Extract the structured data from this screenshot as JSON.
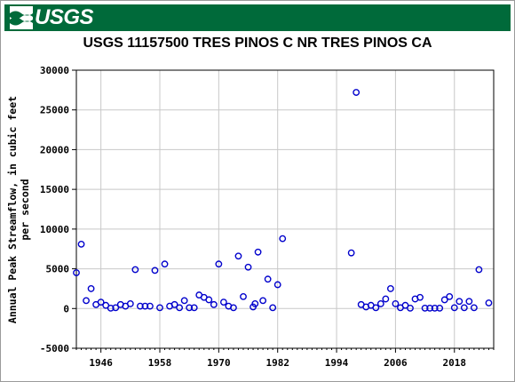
{
  "banner": {
    "logo_text": "USGS",
    "logo_icon": "usgs-wave-icon",
    "color": "#006a3a"
  },
  "chart_data": {
    "type": "scatter",
    "title": "USGS 11157500 TRES PINOS C NR TRES PINOS CA",
    "xlabel": "",
    "ylabel_lines": [
      "Annual Peak Streamflow, in cubic feet",
      "per second"
    ],
    "xlim": [
      1941,
      2026
    ],
    "ylim": [
      -5000,
      30000
    ],
    "x_ticks": [
      1946,
      1958,
      1970,
      1982,
      1994,
      2006,
      2018
    ],
    "y_ticks": [
      -5000,
      0,
      5000,
      10000,
      15000,
      20000,
      25000,
      30000
    ],
    "grid": true,
    "marker_color": "#0000cc",
    "points": [
      [
        1941,
        4500
      ],
      [
        1942,
        8100
      ],
      [
        1943,
        1000
      ],
      [
        1944,
        2500
      ],
      [
        1945,
        500
      ],
      [
        1946,
        800
      ],
      [
        1947,
        400
      ],
      [
        1948,
        50
      ],
      [
        1949,
        100
      ],
      [
        1950,
        500
      ],
      [
        1951,
        300
      ],
      [
        1952,
        600
      ],
      [
        1953,
        4900
      ],
      [
        1954,
        300
      ],
      [
        1955,
        300
      ],
      [
        1956,
        300
      ],
      [
        1957,
        4800
      ],
      [
        1958,
        100
      ],
      [
        1959,
        5600
      ],
      [
        1960,
        300
      ],
      [
        1961,
        500
      ],
      [
        1962,
        100
      ],
      [
        1963,
        1000
      ],
      [
        1964,
        100
      ],
      [
        1965,
        100
      ],
      [
        1966,
        1700
      ],
      [
        1967,
        1400
      ],
      [
        1968,
        1100
      ],
      [
        1969,
        500
      ],
      [
        1970,
        5600
      ],
      [
        1971,
        800
      ],
      [
        1972,
        300
      ],
      [
        1973,
        100
      ],
      [
        1974,
        6600
      ],
      [
        1975,
        1500
      ],
      [
        1976,
        5200
      ],
      [
        1977,
        200
      ],
      [
        1977.4,
        600
      ],
      [
        1978,
        7100
      ],
      [
        1979,
        1000
      ],
      [
        1980,
        3700
      ],
      [
        1981,
        100
      ],
      [
        1982,
        3000
      ],
      [
        1983,
        8800
      ],
      [
        1997,
        7000
      ],
      [
        1998,
        27200
      ],
      [
        1999,
        500
      ],
      [
        2000,
        200
      ],
      [
        2001,
        400
      ],
      [
        2002,
        100
      ],
      [
        2003,
        600
      ],
      [
        2004,
        1200
      ],
      [
        2005,
        2500
      ],
      [
        2006,
        600
      ],
      [
        2007,
        100
      ],
      [
        2008,
        400
      ],
      [
        2009,
        50
      ],
      [
        2010,
        1200
      ],
      [
        2011,
        1400
      ],
      [
        2012,
        50
      ],
      [
        2013,
        50
      ],
      [
        2014,
        50
      ],
      [
        2015,
        50
      ],
      [
        2016,
        1100
      ],
      [
        2017,
        1500
      ],
      [
        2018,
        100
      ],
      [
        2019,
        900
      ],
      [
        2020,
        100
      ],
      [
        2021,
        900
      ],
      [
        2022,
        100
      ],
      [
        2023,
        4900
      ],
      [
        2025,
        700
      ]
    ]
  }
}
